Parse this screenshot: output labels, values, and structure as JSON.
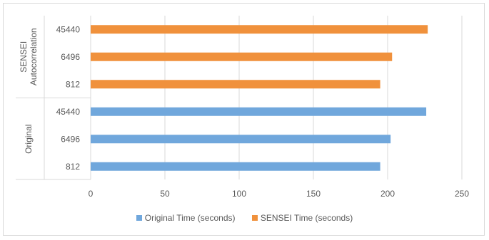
{
  "chart_data": {
    "type": "bar",
    "orientation": "horizontal",
    "title": "",
    "xlabel": "",
    "ylabel": "",
    "xlim": [
      0,
      250
    ],
    "x_ticks": [
      0,
      50,
      100,
      150,
      200,
      250
    ],
    "gridlines": true,
    "legend_position": "bottom",
    "groups": [
      {
        "label": "SENSEI Autocorrelation",
        "label_lines": [
          "SENSEI",
          "Autocorrelation"
        ],
        "series": "SENSEI Time (seconds)",
        "categories": [
          "45440",
          "6496",
          "812"
        ],
        "values": [
          227,
          203,
          195
        ]
      },
      {
        "label": "Original",
        "label_lines": [
          "Original"
        ],
        "series": "Original Time (seconds)",
        "categories": [
          "45440",
          "6496",
          "812"
        ],
        "values": [
          226,
          202,
          195
        ]
      }
    ],
    "series": [
      {
        "name": "Original Time (seconds)",
        "color": "#70a7dc"
      },
      {
        "name": "SENSEI Time (seconds)",
        "color": "#f0913c"
      }
    ]
  }
}
